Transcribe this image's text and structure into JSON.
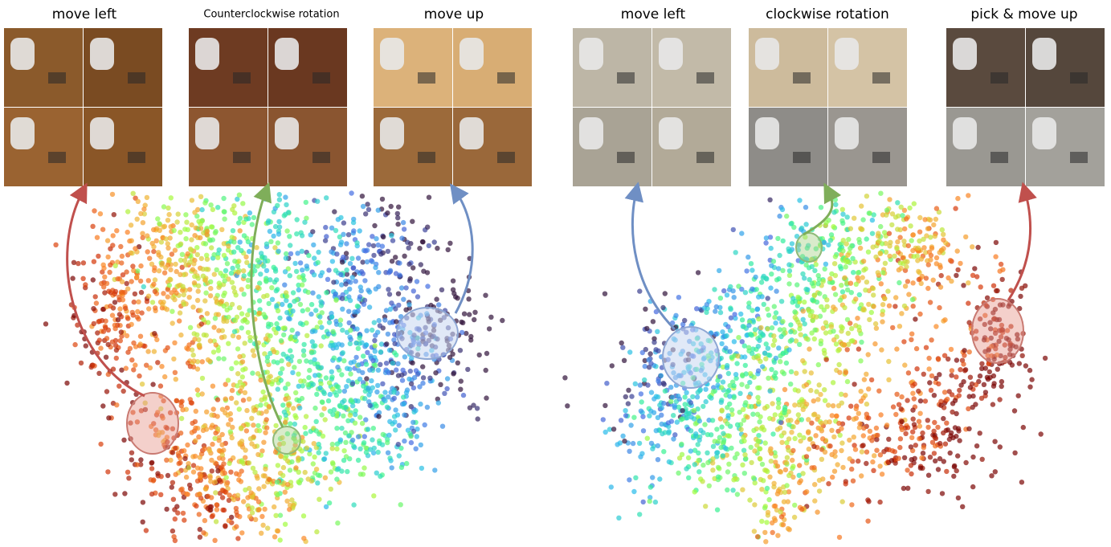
{
  "panels": [
    {
      "labels": [
        "move left",
        "Counterclockwise rotation",
        "move up"
      ]
    },
    {
      "labels": [
        "move left",
        "clockwise rotation",
        "pick & move up"
      ]
    }
  ]
}
